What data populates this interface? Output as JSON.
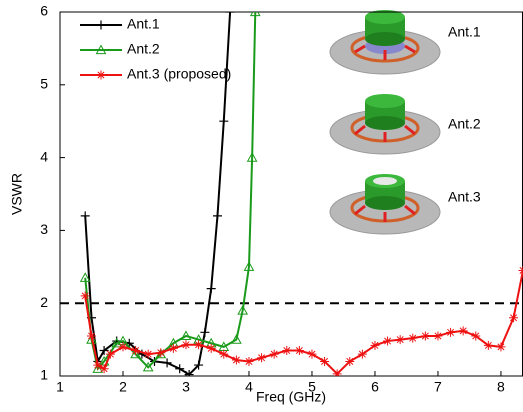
{
  "chart_data": {
    "type": "line",
    "xlabel": "Freq (GHz)",
    "ylabel": "VSWR",
    "xlim": [
      1,
      8.35
    ],
    "ylim": [
      1,
      6
    ],
    "xticks": [
      1,
      2,
      3,
      4,
      5,
      6,
      7,
      8
    ],
    "yticks": [
      1,
      2,
      3,
      4,
      5,
      6
    ],
    "grid": false,
    "legend": "upper left",
    "reference_line": 2,
    "annotations": [
      "Ant.1",
      "Ant.2",
      "Ant.3"
    ],
    "series": [
      {
        "name": "Ant.1",
        "color": "#000000",
        "marker": "plus",
        "x": [
          1.4,
          1.5,
          1.6,
          1.7,
          1.9,
          2.1,
          2.3,
          2.5,
          2.7,
          2.9,
          3.05,
          3.2,
          3.3,
          3.4,
          3.5,
          3.6,
          3.7
        ],
        "values": [
          3.2,
          1.8,
          1.2,
          1.35,
          1.48,
          1.45,
          1.3,
          1.2,
          1.18,
          1.1,
          1.02,
          1.15,
          1.6,
          2.2,
          3.2,
          4.5,
          6
        ]
      },
      {
        "name": "Ant.2",
        "color": "#1a9a1a",
        "marker": "triangle",
        "x": [
          1.4,
          1.5,
          1.6,
          1.7,
          1.9,
          2.0,
          2.2,
          2.4,
          2.6,
          2.8,
          3.0,
          3.2,
          3.4,
          3.6,
          3.8,
          3.9,
          4.0,
          4.05,
          4.1
        ],
        "values": [
          2.35,
          1.5,
          1.1,
          1.2,
          1.45,
          1.48,
          1.3,
          1.12,
          1.3,
          1.45,
          1.55,
          1.5,
          1.45,
          1.4,
          1.5,
          1.9,
          2.5,
          4,
          6
        ]
      },
      {
        "name": "Ant.3 (proposed)",
        "color": "#ee1111",
        "marker": "star",
        "x": [
          1.4,
          1.5,
          1.6,
          1.7,
          1.8,
          2.0,
          2.2,
          2.4,
          2.6,
          2.8,
          3.0,
          3.2,
          3.4,
          3.6,
          3.8,
          4.0,
          4.2,
          4.4,
          4.6,
          4.8,
          5.0,
          5.2,
          5.4,
          5.6,
          5.8,
          6.0,
          6.2,
          6.4,
          6.6,
          6.8,
          7.0,
          7.2,
          7.4,
          7.6,
          7.8,
          8.0,
          8.2,
          8.35
        ],
        "values": [
          2.1,
          1.55,
          1.15,
          1.1,
          1.3,
          1.4,
          1.35,
          1.3,
          1.32,
          1.38,
          1.43,
          1.43,
          1.38,
          1.3,
          1.22,
          1.2,
          1.25,
          1.3,
          1.35,
          1.35,
          1.3,
          1.2,
          1.03,
          1.2,
          1.3,
          1.42,
          1.48,
          1.5,
          1.52,
          1.55,
          1.55,
          1.6,
          1.62,
          1.55,
          1.42,
          1.4,
          1.8,
          2.45
        ]
      }
    ]
  }
}
